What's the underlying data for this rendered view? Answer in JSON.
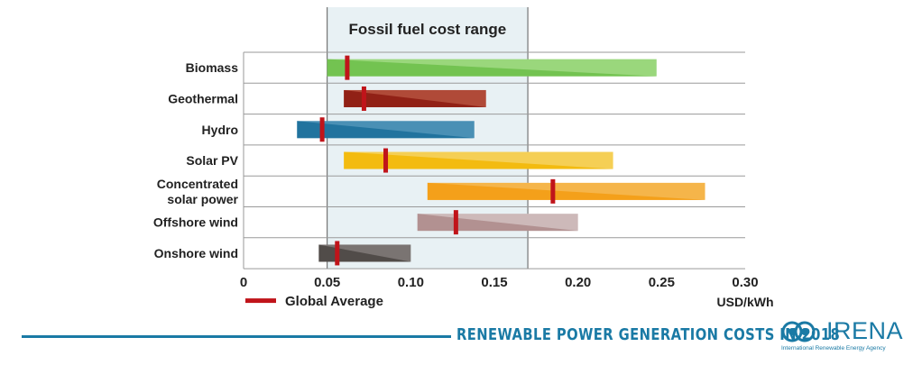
{
  "chart_data": {
    "type": "range-bar",
    "band": {
      "label": "Fossil fuel cost range",
      "from": 0.05,
      "to": 0.17
    },
    "x_ticks": [
      "0",
      "0.05",
      "0.10",
      "0.15",
      "0.20",
      "0.25",
      "0.30"
    ],
    "x_tick_values": [
      0,
      0.05,
      0.1,
      0.15,
      0.2,
      0.25,
      0.3
    ],
    "xlim": [
      0,
      0.3
    ],
    "unit_label": "USD/kWh",
    "legend_label": "Global Average",
    "series": [
      {
        "name": "Biomass",
        "label_lines": [
          "Biomass"
        ],
        "min": 0.05,
        "max": 0.247,
        "avg": 0.062,
        "color": "#6cc04a",
        "light": "#9ad77c"
      },
      {
        "name": "Geothermal",
        "label_lines": [
          "Geothermal"
        ],
        "min": 0.06,
        "max": 0.145,
        "avg": 0.072,
        "color": "#8c1a10",
        "light": "#b04a38"
      },
      {
        "name": "Hydro",
        "label_lines": [
          "Hydro"
        ],
        "min": 0.032,
        "max": 0.138,
        "avg": 0.047,
        "color": "#1a6e9a",
        "light": "#4a90b5"
      },
      {
        "name": "Solar PV",
        "label_lines": [
          "Solar PV"
        ],
        "min": 0.06,
        "max": 0.221,
        "avg": 0.085,
        "color": "#f2b705",
        "light": "#f5cf55"
      },
      {
        "name": "Concentrated solar power",
        "label_lines": [
          "Concentrated",
          "solar power"
        ],
        "min": 0.11,
        "max": 0.276,
        "avg": 0.185,
        "color": "#f39c12",
        "light": "#f5b54a"
      },
      {
        "name": "Offshore wind",
        "label_lines": [
          "Offshore wind"
        ],
        "min": 0.104,
        "max": 0.2,
        "avg": 0.127,
        "color": "#ad8a8a",
        "light": "#cdb9b9"
      },
      {
        "name": "Onshore wind",
        "label_lines": [
          "Onshore wind"
        ],
        "min": 0.045,
        "max": 0.1,
        "avg": 0.056,
        "color": "#4a4542",
        "light": "#7a7472"
      }
    ],
    "avg_marker_color": "#c0141a",
    "grid": true
  },
  "footer": {
    "title": "RENEWABLE POWER GENERATION COSTS IN 2018",
    "title_color": "#1a7aa5",
    "line_color": "#1a7aa5"
  },
  "logo": {
    "name": "IRENA",
    "subtitle": "International Renewable Energy Agency",
    "color": "#1a7aa5",
    "icon": "irena-logo-icon"
  }
}
